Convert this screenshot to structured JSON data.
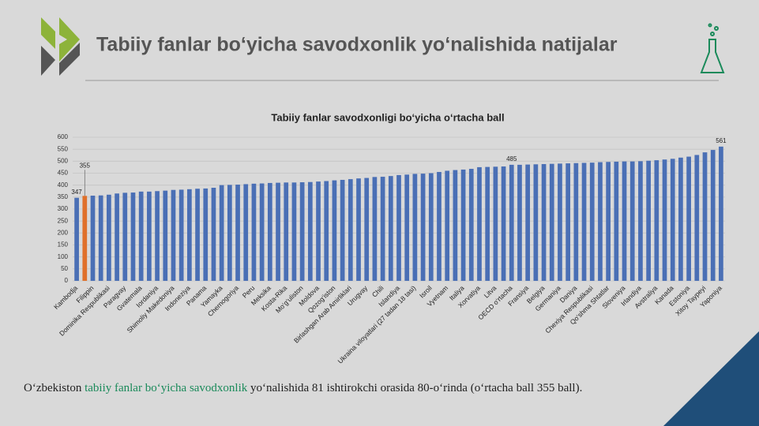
{
  "header": {
    "title": "Tabiiy fanlar bo‘yicha savodxonlik yo‘nalishida natijalar"
  },
  "chart_data": {
    "type": "bar",
    "title": "Tabiiy fanlar savodxonligi bo‘yicha o‘rtacha ball",
    "categories": [
      "Kambodja",
      null,
      "Filippin",
      null,
      "Dominika Respublikasi",
      null,
      "Paragvay",
      null,
      "Gvatemala",
      null,
      "Iordaniya",
      null,
      "Shimoliy Makedoniya",
      null,
      "Indoneziya",
      null,
      "Panama",
      null,
      "Yamayka",
      null,
      "Chernogoriya",
      null,
      "Peru",
      null,
      "Meksika",
      null,
      "Kosta-Rika",
      null,
      "Mo‘g‘uliston",
      null,
      "Moldova",
      null,
      "Qozog‘iston",
      null,
      "Birlashgan Arab Amirliklari",
      null,
      "Urugvay",
      null,
      "Chili",
      null,
      "Islandiya",
      null,
      "Ukraina viloyatlari (27 tadan 18 tasi)",
      null,
      "Isroil",
      null,
      "Vyetnam",
      null,
      "Italiya",
      null,
      "Xorvatiya",
      null,
      "Litva",
      null,
      "OECD o‘rtacha",
      null,
      "Fransiya",
      null,
      "Belgiya",
      null,
      "Germaniya",
      null,
      "Daniya",
      null,
      "Chexiya Respublikasi",
      null,
      "Qo‘shma Shtatlar",
      null,
      "Sloveniya",
      null,
      "Irlandiya",
      null,
      "Avstraliya",
      null,
      "Kanada",
      null,
      "Estoniya",
      null,
      "Xitoy Taypeyi",
      null,
      "Yaponiya"
    ],
    "values": [
      347,
      355,
      356,
      357,
      360,
      365,
      368,
      369,
      373,
      373,
      375,
      377,
      380,
      381,
      383,
      385,
      386,
      389,
      400,
      401,
      402,
      404,
      406,
      407,
      409,
      410,
      411,
      411,
      412,
      413,
      415,
      417,
      420,
      422,
      425,
      428,
      430,
      434,
      435,
      438,
      442,
      444,
      447,
      448,
      450,
      455,
      460,
      463,
      465,
      468,
      475,
      476,
      477,
      478,
      485,
      485,
      486,
      487,
      488,
      489,
      490,
      491,
      492,
      493,
      494,
      496,
      497,
      498,
      499,
      499,
      500,
      502,
      504,
      507,
      510,
      515,
      519,
      526,
      537,
      547,
      561
    ],
    "value_labels": [
      "347",
      "355",
      null,
      null,
      null,
      null,
      null,
      null,
      null,
      null,
      null,
      null,
      null,
      null,
      null,
      null,
      null,
      null,
      null,
      null,
      null,
      null,
      null,
      null,
      null,
      null,
      null,
      null,
      null,
      null,
      null,
      null,
      null,
      null,
      null,
      null,
      null,
      null,
      null,
      null,
      null,
      null,
      null,
      null,
      null,
      null,
      null,
      null,
      null,
      null,
      null,
      null,
      null,
      null,
      "485",
      null,
      null,
      null,
      null,
      null,
      null,
      null,
      null,
      null,
      null,
      null,
      null,
      null,
      null,
      null,
      null,
      null,
      null,
      null,
      null,
      null,
      null,
      null,
      null,
      null,
      "561"
    ],
    "colors": [
      "#4a6fb5",
      "#e0702a",
      "#4a6fb5",
      "#4a6fb5",
      "#4a6fb5",
      "#4a6fb5",
      "#4a6fb5",
      "#4a6fb5",
      "#4a6fb5",
      "#4a6fb5",
      "#4a6fb5",
      "#4a6fb5",
      "#4a6fb5",
      "#4a6fb5",
      "#4a6fb5",
      "#4a6fb5",
      "#4a6fb5",
      "#4a6fb5",
      "#4a6fb5",
      "#4a6fb5",
      "#4a6fb5",
      "#4a6fb5",
      "#4a6fb5",
      "#4a6fb5",
      "#4a6fb5",
      "#4a6fb5",
      "#4a6fb5",
      "#4a6fb5",
      "#4a6fb5",
      "#4a6fb5",
      "#4a6fb5",
      "#4a6fb5",
      "#4a6fb5",
      "#4a6fb5",
      "#4a6fb5",
      "#4a6fb5",
      "#4a6fb5",
      "#4a6fb5",
      "#4a6fb5",
      "#4a6fb5",
      "#4a6fb5",
      "#4a6fb5",
      "#4a6fb5",
      "#4a6fb5",
      "#4a6fb5",
      "#4a6fb5",
      "#4a6fb5",
      "#4a6fb5",
      "#4a6fb5",
      "#4a6fb5",
      "#4a6fb5",
      "#4a6fb5",
      "#4a6fb5",
      "#4a6fb5",
      "#4a6fb5",
      "#4a6fb5",
      "#4a6fb5",
      "#4a6fb5",
      "#4a6fb5",
      "#4a6fb5",
      "#4a6fb5",
      "#4a6fb5",
      "#4a6fb5",
      "#4a6fb5",
      "#4a6fb5",
      "#4a6fb5",
      "#4a6fb5",
      "#4a6fb5",
      "#4a6fb5",
      "#4a6fb5",
      "#4a6fb5",
      "#4a6fb5",
      "#4a6fb5",
      "#4a6fb5",
      "#4a6fb5",
      "#4a6fb5",
      "#4a6fb5",
      "#4a6fb5",
      "#4a6fb5",
      "#4a6fb5",
      "#4a6fb5"
    ],
    "ylim": [
      0,
      600
    ],
    "yticks": [
      0,
      50,
      100,
      150,
      200,
      250,
      300,
      350,
      400,
      450,
      500,
      550,
      600
    ],
    "grid": true
  },
  "footer": {
    "parts": [
      "O‘zbekiston ",
      "tabiiy fanlar bo‘yicha savodxonlik",
      " yo‘nalishida 81 ishtirokchi orasida 80-o‘rinda (o‘rtacha ball 355 ball)."
    ]
  }
}
